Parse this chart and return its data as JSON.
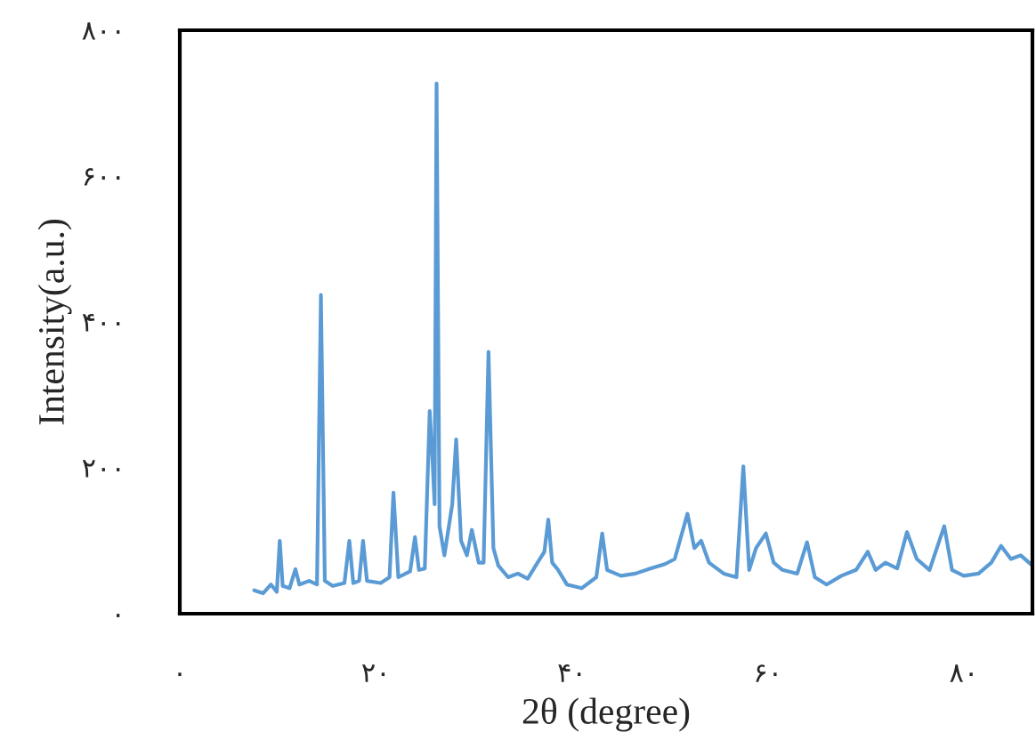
{
  "chart_data": {
    "type": "line",
    "xlabel": "2θ (degree)",
    "ylabel": "Intensity(a.u.)",
    "xlim": [
      0,
      87
    ],
    "ylim": [
      0,
      800
    ],
    "xticks": [
      {
        "value": 0,
        "label": "۰"
      },
      {
        "value": 20,
        "label": "۲۰"
      },
      {
        "value": 40,
        "label": "۴۰"
      },
      {
        "value": 60,
        "label": "۶۰"
      },
      {
        "value": 80,
        "label": "۸۰"
      }
    ],
    "yticks": [
      {
        "value": 0,
        "label": "۰"
      },
      {
        "value": 200,
        "label": "۲۰۰"
      },
      {
        "value": 400,
        "label": "۴۰۰"
      },
      {
        "value": 600,
        "label": "۶۰۰"
      },
      {
        "value": 800,
        "label": "۸۰۰"
      }
    ],
    "marker": "none",
    "line_style": "solid",
    "series": [
      {
        "color": "#5b9bd5",
        "x": [
          7.6,
          8.5,
          9.3,
          9.9,
          10.2,
          10.5,
          11.2,
          11.8,
          12.2,
          13.2,
          14.0,
          14.4,
          14.8,
          15.6,
          16.8,
          17.3,
          17.7,
          18.3,
          18.7,
          19.1,
          20.5,
          21.4,
          21.8,
          22.3,
          23.5,
          24.0,
          24.4,
          25.0,
          25.5,
          25.8,
          26.0,
          26.2,
          26.5,
          27.0,
          27.8,
          28.2,
          28.7,
          29.3,
          29.8,
          30.5,
          31.0,
          31.5,
          32.0,
          32.5,
          33.5,
          34.5,
          35.5,
          36.5,
          37.2,
          37.6,
          38.0,
          38.6,
          39.5,
          41.0,
          42.5,
          43.1,
          43.6,
          45.0,
          46.5,
          48.0,
          49.5,
          50.5,
          51.8,
          52.5,
          53.2,
          54.0,
          55.5,
          56.8,
          57.5,
          58.1,
          58.8,
          59.8,
          60.6,
          61.5,
          63.0,
          64.0,
          64.8,
          66.0,
          67.5,
          69.0,
          70.2,
          71.0,
          72.0,
          73.2,
          74.2,
          75.2,
          76.5,
          78.0,
          78.8,
          80.0,
          81.5,
          82.8,
          83.8,
          84.8,
          85.8,
          87.0
        ],
        "values": [
          32,
          28,
          40,
          30,
          100,
          38,
          35,
          61,
          40,
          45,
          40,
          437,
          45,
          38,
          42,
          100,
          42,
          45,
          100,
          45,
          42,
          50,
          166,
          50,
          58,
          105,
          60,
          62,
          278,
          207,
          150,
          727,
          120,
          80,
          150,
          239,
          100,
          80,
          115,
          70,
          70,
          359,
          90,
          66,
          50,
          55,
          48,
          70,
          85,
          129,
          70,
          60,
          40,
          35,
          50,
          110,
          60,
          52,
          55,
          62,
          68,
          75,
          137,
          90,
          100,
          70,
          55,
          50,
          202,
          60,
          90,
          110,
          70,
          60,
          55,
          98,
          50,
          40,
          52,
          60,
          85,
          60,
          70,
          62,
          112,
          75,
          60,
          120,
          60,
          52,
          55,
          70,
          93,
          75,
          80,
          66
        ]
      }
    ]
  }
}
